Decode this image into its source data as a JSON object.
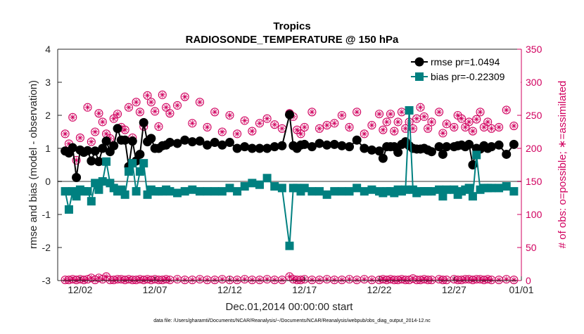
{
  "chart_data": {
    "type": "line",
    "title": "Tropics",
    "subtitle": "RADIOSONDE_TEMPERATURE @ 150 hPa",
    "xlabel": "Dec.01,2014 00:00:00 start",
    "ylabel": "rmse and bias (model - observation)",
    "ylabel_right": "# of obs: o=possible; ∗=assimilated",
    "footer": "data file: /Users/gharamti/Documents/NCAR/Reanalysis/~/Documents/NCAR/Reanalysis/webpub/obs_diag_output_2014-12.nc",
    "xlim": [
      0.5,
      31.5
    ],
    "ylim": [
      -3,
      4
    ],
    "ylim_right": [
      0,
      350
    ],
    "x_ticks": [
      {
        "x": 2,
        "label": "12/02"
      },
      {
        "x": 7,
        "label": "12/07"
      },
      {
        "x": 12,
        "label": "12/12"
      },
      {
        "x": 17,
        "label": "12/17"
      },
      {
        "x": 22,
        "label": "12/22"
      },
      {
        "x": 27,
        "label": "12/27"
      },
      {
        "x": 32,
        "label": "01/01"
      }
    ],
    "y_ticks": [
      4,
      3,
      2,
      1,
      0,
      -1,
      -2,
      -3
    ],
    "y_ticks_right": [
      350,
      300,
      250,
      200,
      150,
      100,
      50,
      0
    ],
    "zero_line": 0,
    "colors": {
      "rmse": "#000000",
      "bias": "#008080",
      "obs": "#d1005f",
      "zero": "#999999"
    },
    "legend": {
      "position": "top-right",
      "entries": [
        {
          "series": "rmse",
          "label": "rmse pr=1.0494"
        },
        {
          "series": "bias",
          "label": "bias pr=-0.22309"
        }
      ]
    },
    "series": [
      {
        "name": "rmse",
        "axis": "left",
        "marker": "circle",
        "x": [
          1.0,
          1.25,
          1.5,
          1.75,
          2.0,
          2.25,
          2.5,
          2.75,
          3.0,
          3.25,
          3.5,
          3.75,
          4.0,
          4.25,
          4.5,
          4.75,
          5.0,
          5.25,
          5.5,
          5.75,
          6.0,
          6.25,
          6.5,
          6.75,
          7.0,
          7.25,
          7.5,
          7.75,
          8.0,
          8.5,
          9.0,
          9.5,
          10.0,
          10.5,
          11.0,
          11.5,
          12.0,
          12.5,
          13.0,
          13.5,
          14.0,
          14.5,
          15.0,
          15.5,
          16.0,
          16.25,
          16.5,
          16.75,
          17.0,
          17.5,
          18.0,
          18.5,
          19.0,
          19.5,
          20.0,
          20.5,
          21.0,
          21.5,
          22.0,
          22.25,
          22.5,
          22.75,
          23.0,
          23.25,
          23.5,
          23.75,
          24.0,
          24.25,
          24.5,
          24.75,
          25.0,
          25.25,
          25.5,
          26.0,
          26.25,
          26.5,
          27.0,
          27.25,
          27.5,
          27.75,
          28.0,
          28.25,
          28.5,
          28.75,
          29.0,
          29.25,
          29.5,
          30.0,
          30.5,
          31.0
        ],
        "values": [
          0.92,
          0.86,
          1.02,
          0.12,
          0.95,
          0.88,
          0.93,
          0.62,
          0.92,
          0.6,
          1.0,
          1.22,
          0.9,
          1.08,
          1.6,
          1.25,
          1.25,
          0.45,
          1.22,
          0.62,
          0.82,
          1.78,
          1.2,
          1.3,
          1.0,
          1.0,
          1.08,
          1.1,
          1.18,
          1.15,
          1.25,
          1.2,
          1.22,
          1.1,
          1.18,
          1.1,
          1.18,
          1.0,
          1.05,
          1.0,
          1.0,
          1.0,
          1.05,
          1.08,
          2.02,
          1.08,
          1.0,
          1.1,
          1.12,
          1.05,
          1.15,
          1.1,
          1.12,
          1.08,
          1.05,
          1.25,
          1.0,
          0.95,
          0.92,
          0.7,
          1.05,
          1.05,
          1.05,
          0.88,
          1.12,
          1.2,
          1.08,
          1.0,
          0.98,
          0.98,
          1.0,
          0.95,
          0.9,
          1.05,
          0.82,
          1.05,
          1.05,
          1.08,
          1.1,
          1.05,
          1.12,
          0.5,
          1.0,
          0.98,
          1.08,
          1.0,
          1.05,
          1.1,
          0.82,
          1.12
        ]
      },
      {
        "name": "bias",
        "axis": "left",
        "marker": "square",
        "x": [
          1.0,
          1.25,
          1.5,
          1.75,
          2.0,
          2.25,
          2.5,
          2.75,
          3.0,
          3.25,
          3.5,
          3.75,
          4.0,
          4.25,
          4.5,
          4.75,
          5.0,
          5.25,
          5.5,
          5.75,
          6.0,
          6.25,
          6.5,
          6.75,
          7.0,
          7.25,
          7.5,
          7.75,
          8.0,
          8.5,
          9.0,
          9.5,
          10.0,
          10.5,
          11.0,
          11.5,
          12.0,
          12.5,
          13.0,
          13.5,
          14.0,
          14.5,
          15.0,
          15.5,
          16.0,
          16.25,
          16.5,
          16.75,
          17.0,
          17.5,
          18.0,
          18.5,
          19.0,
          19.5,
          20.0,
          20.5,
          21.0,
          21.5,
          22.0,
          22.25,
          22.5,
          22.75,
          23.0,
          23.25,
          23.5,
          23.75,
          24.0,
          24.25,
          24.5,
          24.75,
          25.0,
          25.25,
          25.5,
          26.0,
          26.25,
          26.5,
          27.0,
          27.25,
          27.5,
          27.75,
          28.0,
          28.25,
          28.5,
          28.75,
          29.0,
          29.25,
          29.5,
          30.0,
          30.5,
          31.0
        ],
        "values": [
          -0.3,
          -0.85,
          -0.3,
          -0.45,
          -0.25,
          -0.3,
          -0.3,
          -0.6,
          -0.05,
          -0.25,
          0.0,
          0.6,
          -0.05,
          -0.2,
          -0.3,
          -0.25,
          -0.4,
          0.3,
          0.55,
          -0.3,
          0.3,
          0.55,
          -0.4,
          -0.25,
          -0.3,
          -0.3,
          -0.3,
          -0.25,
          -0.3,
          -0.35,
          -0.3,
          -0.25,
          -0.3,
          -0.3,
          -0.3,
          -0.3,
          -0.2,
          -0.3,
          -0.15,
          -0.05,
          -0.1,
          0.1,
          -0.15,
          -0.2,
          -1.95,
          -0.2,
          -0.2,
          -0.3,
          -0.2,
          -0.3,
          -0.3,
          -0.4,
          -0.3,
          -0.3,
          -0.3,
          -0.2,
          -0.3,
          -0.25,
          -0.3,
          -0.35,
          -0.3,
          -0.3,
          -0.35,
          -0.25,
          -0.3,
          -0.25,
          2.15,
          -0.25,
          -0.35,
          -0.3,
          -0.3,
          -0.3,
          -0.3,
          -0.25,
          -0.45,
          -0.25,
          -0.25,
          -0.4,
          -0.3,
          -0.25,
          -0.2,
          -0.45,
          0.8,
          -0.25,
          -0.2,
          -0.2,
          -0.2,
          -0.2,
          -0.15,
          -0.3
        ]
      },
      {
        "name": "obs_possible",
        "axis": "right",
        "marker": "circle-open",
        "x": [
          1.0,
          1.25,
          1.5,
          1.75,
          2.0,
          2.25,
          2.5,
          2.75,
          3.0,
          3.25,
          3.5,
          3.75,
          4.0,
          4.25,
          4.5,
          4.75,
          5.0,
          5.25,
          5.5,
          5.75,
          6.0,
          6.25,
          6.5,
          6.75,
          7.0,
          7.25,
          7.5,
          7.75,
          8.0,
          8.5,
          9.0,
          9.5,
          10.0,
          10.5,
          11.0,
          11.5,
          12.0,
          12.5,
          13.0,
          13.5,
          14.0,
          14.5,
          15.0,
          15.5,
          16.0,
          16.25,
          16.5,
          16.75,
          17.0,
          17.5,
          18.0,
          18.5,
          19.0,
          19.5,
          20.0,
          20.5,
          21.0,
          21.5,
          22.0,
          22.25,
          22.5,
          22.75,
          23.0,
          23.25,
          23.5,
          23.75,
          24.0,
          24.25,
          24.5,
          24.75,
          25.0,
          25.25,
          25.5,
          26.0,
          26.25,
          26.5,
          27.0,
          27.25,
          27.5,
          27.75,
          28.0,
          28.25,
          28.5,
          28.75,
          29.0,
          29.25,
          29.5,
          30.0,
          30.5,
          31.0
        ],
        "values": [
          222,
          207,
          247,
          182,
          216,
          195,
          262,
          210,
          225,
          253,
          240,
          222,
          215,
          245,
          252,
          232,
          228,
          262,
          216,
          270,
          255,
          233,
          280,
          270,
          256,
          233,
          281,
          262,
          253,
          265,
          278,
          238,
          270,
          232,
          255,
          225,
          250,
          222,
          242,
          226,
          238,
          245,
          236,
          230,
          253,
          248,
          228,
          222,
          232,
          255,
          230,
          235,
          238,
          250,
          232,
          255,
          222,
          235,
          252,
          228,
          240,
          252,
          226,
          240,
          255,
          230,
          240,
          230,
          245,
          262,
          248,
          230,
          240,
          255,
          223,
          237,
          232,
          250,
          245,
          232,
          240,
          226,
          244,
          255,
          232,
          240,
          230,
          232,
          258,
          234
        ],
        "values_assimilated": [
          222,
          207,
          247,
          182,
          216,
          195,
          262,
          210,
          225,
          253,
          240,
          222,
          215,
          245,
          252,
          232,
          228,
          262,
          216,
          270,
          255,
          233,
          280,
          270,
          256,
          233,
          281,
          262,
          253,
          265,
          278,
          238,
          270,
          232,
          255,
          225,
          250,
          222,
          242,
          226,
          238,
          245,
          236,
          230,
          253,
          248,
          228,
          222,
          232,
          255,
          230,
          235,
          238,
          250,
          232,
          255,
          222,
          235,
          252,
          228,
          240,
          252,
          226,
          240,
          255,
          230,
          240,
          230,
          245,
          262,
          248,
          230,
          240,
          255,
          223,
          237,
          232,
          250,
          245,
          232,
          240,
          226,
          244,
          255,
          232,
          240,
          230,
          232,
          258,
          234
        ]
      },
      {
        "name": "obs_low",
        "axis": "right",
        "marker": "circle-open",
        "x": [
          1.0,
          1.25,
          1.5,
          1.75,
          2.0,
          2.25,
          2.5,
          2.75,
          3.0,
          3.25,
          3.5,
          3.75,
          4.0,
          4.25,
          4.5,
          4.75,
          5.0,
          5.25,
          5.5,
          5.75,
          6.0,
          6.25,
          6.5,
          6.75,
          7.0,
          7.25,
          7.5,
          7.75,
          8.0,
          8.5,
          9.0,
          9.5,
          10.0,
          10.5,
          11.0,
          11.5,
          12.0,
          12.5,
          13.0,
          13.5,
          14.0,
          14.5,
          15.0,
          15.5,
          16.0,
          16.25,
          16.5,
          16.75,
          17.0,
          17.5,
          18.0,
          18.5,
          19.0,
          19.5,
          20.0,
          20.5,
          21.0,
          21.5,
          22.0,
          22.25,
          22.5,
          22.75,
          23.0,
          23.25,
          23.5,
          23.75,
          24.0,
          24.25,
          24.5,
          24.75,
          25.0,
          25.25,
          25.5,
          26.0,
          26.25,
          26.5,
          27.0,
          27.25,
          27.5,
          27.75,
          28.0,
          28.25,
          28.5,
          28.75,
          29.0,
          29.25,
          29.5,
          30.0,
          30.5,
          31.0
        ],
        "values": [
          1,
          1,
          2,
          1,
          2,
          1,
          2,
          4,
          1,
          4,
          2,
          6,
          1,
          1,
          2,
          2,
          1,
          2,
          1,
          1,
          2,
          1,
          2,
          1,
          2,
          1,
          1,
          2,
          1,
          2,
          1,
          1,
          2,
          1,
          1,
          2,
          1,
          1,
          2,
          1,
          1,
          2,
          1,
          1,
          6,
          2,
          1,
          1,
          2,
          1,
          1,
          2,
          1,
          1,
          2,
          1,
          2,
          1,
          1,
          2,
          1,
          2,
          1,
          1,
          2,
          1,
          1,
          3,
          1,
          1,
          2,
          1,
          1,
          2,
          1,
          1,
          2,
          1,
          1,
          2,
          2,
          1,
          2,
          2,
          1,
          2,
          1,
          1,
          2,
          1
        ]
      }
    ]
  }
}
